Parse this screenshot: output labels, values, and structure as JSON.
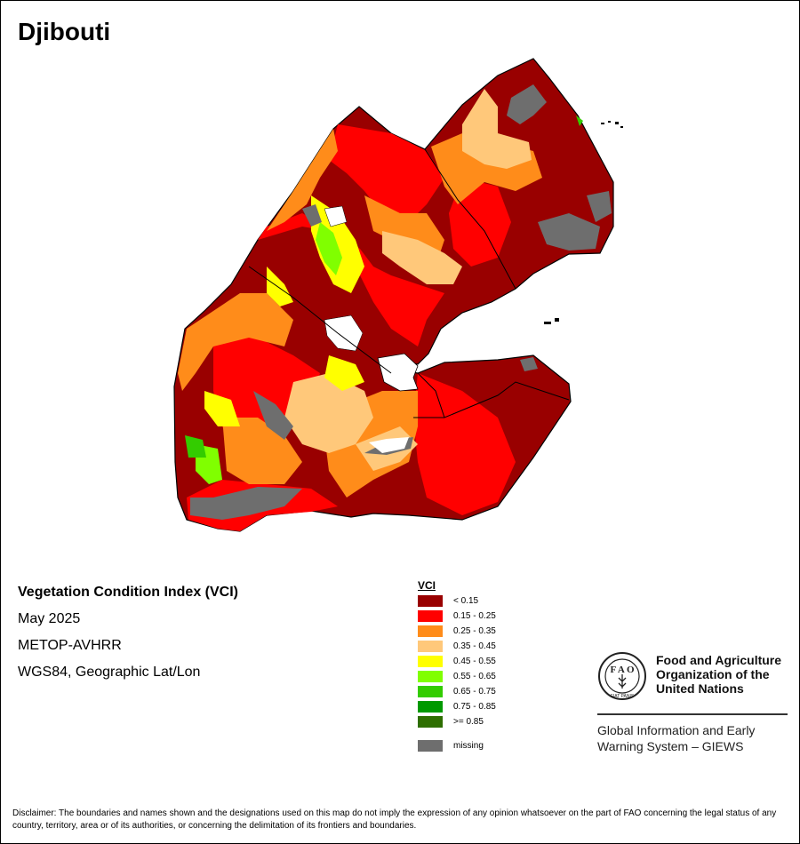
{
  "title": "Djibouti",
  "map_info": {
    "index_name": "Vegetation Condition Index (VCI)",
    "period": "May 2025",
    "sensor": "METOP-AVHRR",
    "projection": "WGS84, Geographic Lat/Lon"
  },
  "legend": {
    "title": "VCI",
    "classes": [
      {
        "label": "< 0.15",
        "color": "#990000"
      },
      {
        "label": "0.15 - 0.25",
        "color": "#ff0000"
      },
      {
        "label": "0.25 - 0.35",
        "color": "#ff8c1a"
      },
      {
        "label": "0.35 - 0.45",
        "color": "#ffc87a"
      },
      {
        "label": "0.45 - 0.55",
        "color": "#ffff00"
      },
      {
        "label": "0.55 - 0.65",
        "color": "#80ff00"
      },
      {
        "label": "0.65 - 0.75",
        "color": "#33cc00"
      },
      {
        "label": "0.75 - 0.85",
        "color": "#009900"
      },
      {
        "label": ">= 0.85",
        "color": "#2e6e00"
      }
    ],
    "missing": {
      "label": "missing",
      "color": "#6e6e6e"
    }
  },
  "organization": {
    "name_lines": [
      "Food and Agriculture",
      "Organization of the",
      "United Nations"
    ],
    "emblem_text": "FIAT PANIS",
    "program_lines": [
      "Global Information and Early",
      "Warning System – GIEWS"
    ]
  },
  "disclaimer": "Disclaimer: The boundaries and names shown and the designations used on this map do not imply the expression of any opinion whatsoever on the part of FAO concerning the legal status of any country, territory, area or of its authorities, or concerning the delimitation of its frontiers and boundaries."
}
